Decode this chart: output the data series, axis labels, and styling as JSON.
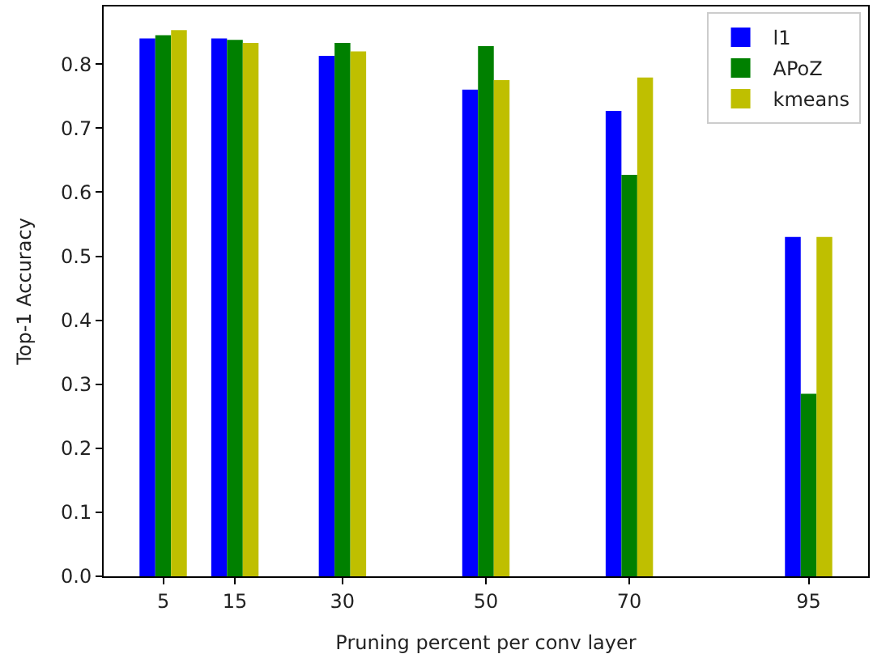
{
  "chart_data": {
    "type": "bar",
    "xlabel": "Pruning percent per conv layer",
    "ylabel": "Top-1 Accuracy",
    "x": [
      5,
      15,
      30,
      50,
      70,
      95
    ],
    "series": [
      {
        "name": "l1",
        "color": "#0000ff",
        "values": [
          0.84,
          0.84,
          0.813,
          0.76,
          0.727,
          0.53
        ]
      },
      {
        "name": "APoZ",
        "color": "#008000",
        "values": [
          0.845,
          0.838,
          0.833,
          0.828,
          0.627,
          0.285
        ]
      },
      {
        "name": "kmeans",
        "color": "#bfbf00",
        "values": [
          0.853,
          0.833,
          0.82,
          0.775,
          0.779,
          0.53
        ]
      }
    ],
    "xlim": [
      -3.3,
      103.3
    ],
    "xticks": [
      5,
      15,
      30,
      50,
      70,
      95
    ],
    "ylim": [
      0,
      0.89
    ],
    "yticks": [
      {
        "value": 0,
        "label": "0.0"
      },
      0.1,
      0.2,
      0.3,
      0.4,
      0.5,
      0.6,
      0.7,
      0.8
    ],
    "legend": "top right"
  }
}
